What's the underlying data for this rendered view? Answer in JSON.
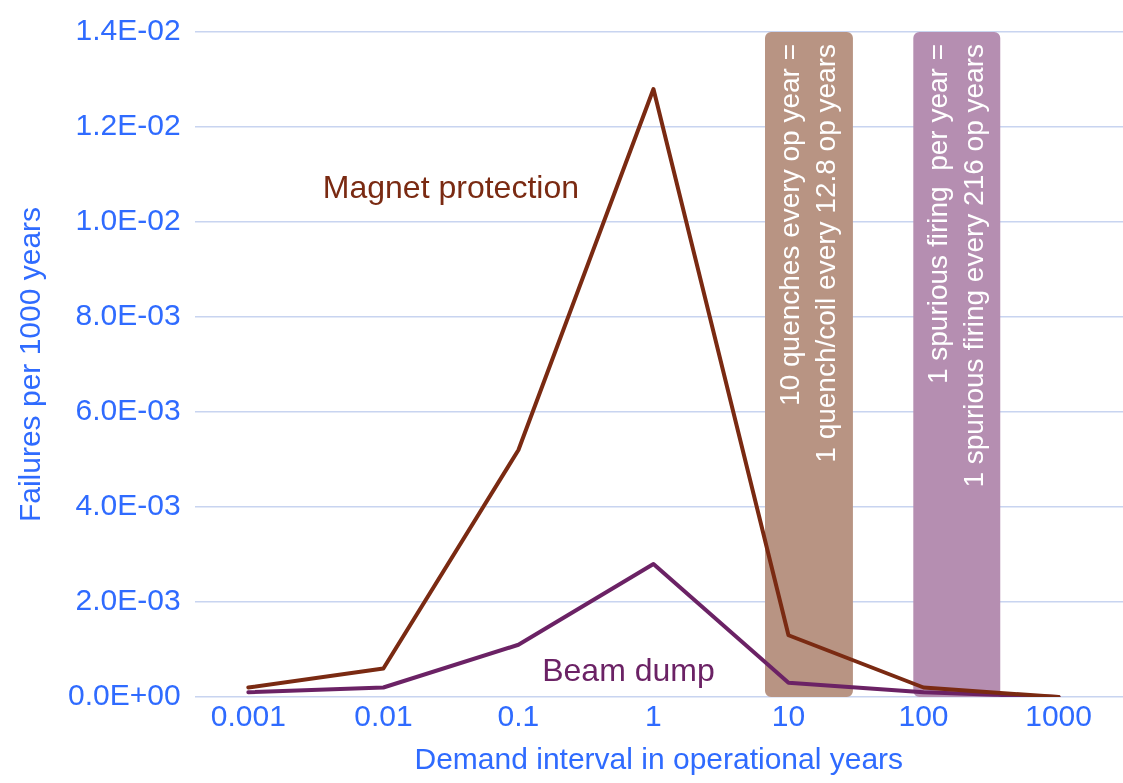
{
  "chart_data": {
    "type": "line",
    "xlabel": "Demand interval in operational years",
    "ylabel": "Failures per 1000 years",
    "x": [
      0.001,
      0.01,
      0.1,
      1,
      10,
      100,
      1000
    ],
    "series": [
      {
        "name": "Magnet protection",
        "color": "#7a2a12",
        "values": [
          0.0002,
          0.0006,
          0.0052,
          0.0128,
          0.0013,
          0.0002,
          0
        ]
      },
      {
        "name": "Beam dump",
        "color": "#6b2265",
        "values": [
          0.0001,
          0.0002,
          0.0011,
          0.0028,
          0.0003,
          0.0001,
          0
        ]
      }
    ],
    "log": "x",
    "xlim": [
      0.0004,
      3000
    ],
    "xticks": [
      0.001,
      0.01,
      0.1,
      1,
      10,
      100,
      1000
    ],
    "ylim": [
      0,
      0.014
    ],
    "yticks": [
      {
        "value": 0,
        "label": "0.0E+00"
      },
      {
        "value": 0.002,
        "label": "2.0E-03"
      },
      {
        "value": 0.004,
        "label": "4.0E-03"
      },
      {
        "value": 0.006,
        "label": "6.0E-03"
      },
      {
        "value": 0.008,
        "label": "8.0E-03"
      },
      {
        "value": 0.01,
        "label": "1.0E-02"
      },
      {
        "value": 0.012,
        "label": "1.2E-02"
      },
      {
        "value": 0.014,
        "label": "1.4E-02"
      }
    ],
    "grid": "y",
    "legend": false,
    "marker": "none",
    "line_style": "solid",
    "bands": [
      {
        "axis": "x",
        "from": 6.7,
        "to": 30,
        "label": "10 quenches every op year =\n1 quench/coil every 12.8 op years",
        "color": "#b89483"
      },
      {
        "axis": "x",
        "from": 84,
        "to": 370,
        "label": "1 spurious firing  per year =\n1 spurious firing every 216 op years",
        "color": "#b58eb1"
      }
    ]
  }
}
